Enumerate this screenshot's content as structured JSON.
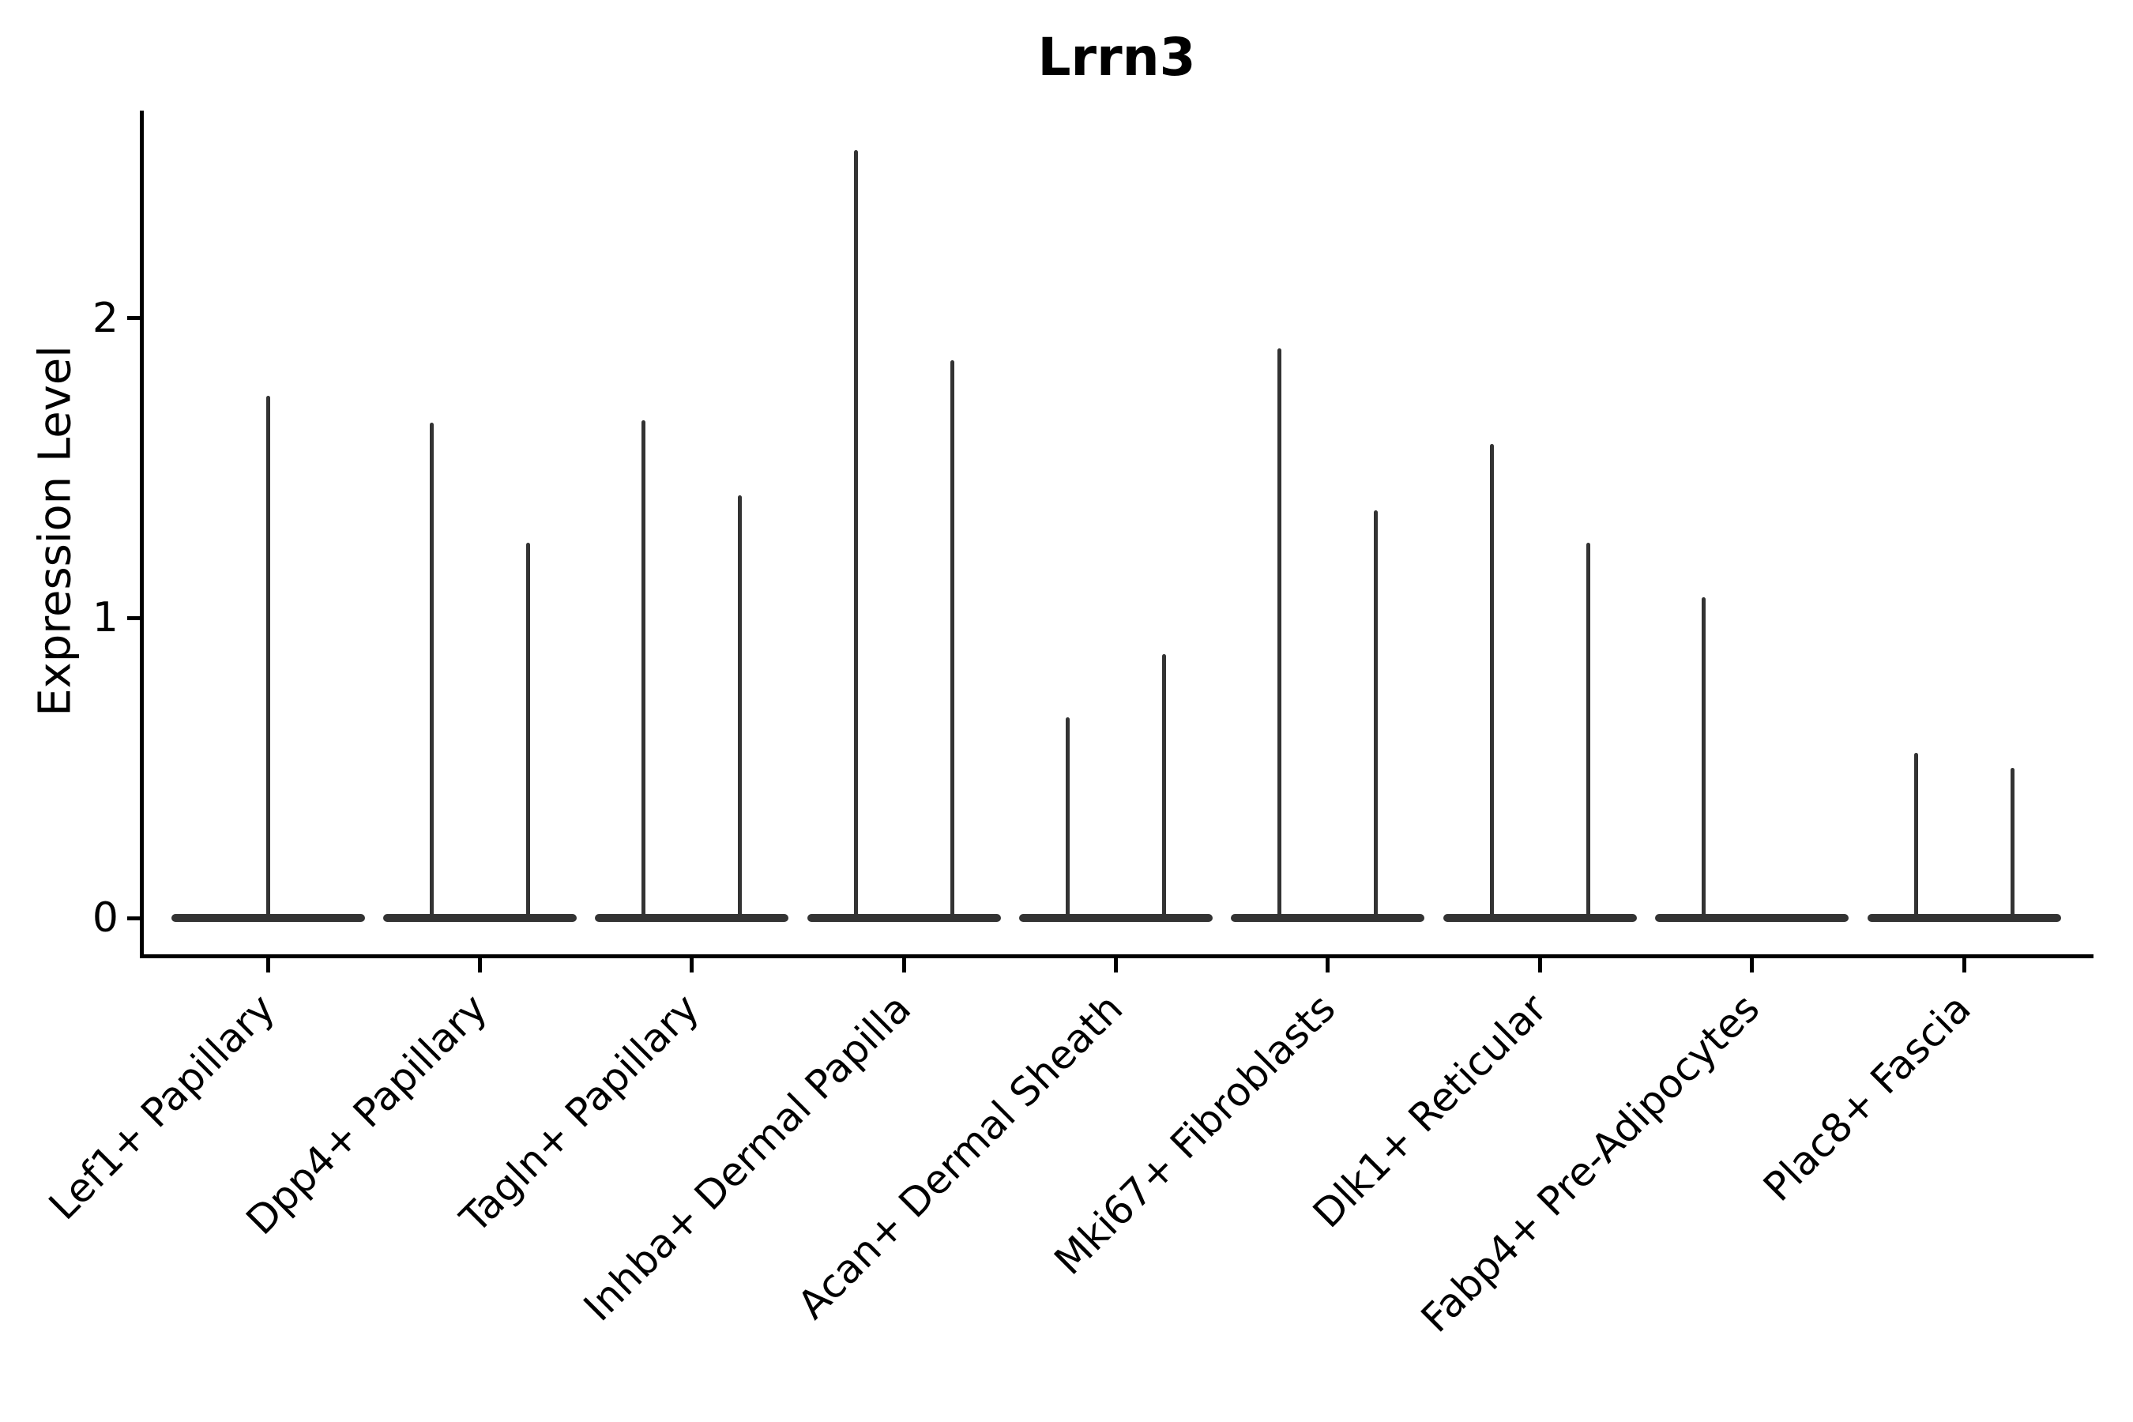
{
  "figure": {
    "title": "Lrrn3",
    "ylabel": "Expression Level",
    "colors": {
      "violin_line": "#333333",
      "axis": "#000000",
      "background": "#ffffff"
    }
  },
  "chart_data": {
    "type": "violin",
    "title": "Lrrn3",
    "xlabel": "",
    "ylabel": "Expression Level",
    "ylim": [
      -0.13,
      2.69
    ],
    "grid": false,
    "legend": "none",
    "yticks": [
      {
        "value": 0,
        "label": "0"
      },
      {
        "value": 1,
        "label": "1"
      },
      {
        "value": 2,
        "label": "2"
      }
    ],
    "description": "Mostly-zero expression violins: each violin collapses to a wide flat base at 0 with a thin vertical density spike rising to its maximum expression value.",
    "categories": [
      {
        "label": "Lef1+ Papillary",
        "violins": [
          {
            "pos": "center",
            "peak": 1.74
          }
        ]
      },
      {
        "label": "Dpp4+ Papillary",
        "violins": [
          {
            "pos": "left",
            "peak": 1.65
          },
          {
            "pos": "right",
            "peak": 1.25
          }
        ]
      },
      {
        "label": "Tagln+ Papillary",
        "violins": [
          {
            "pos": "left",
            "peak": 1.66
          },
          {
            "pos": "right",
            "peak": 1.41
          }
        ]
      },
      {
        "label": "Inhba+ Dermal Papilla",
        "violins": [
          {
            "pos": "left",
            "peak": 2.56
          },
          {
            "pos": "right",
            "peak": 1.86
          }
        ]
      },
      {
        "label": "Acan+ Dermal Sheath",
        "violins": [
          {
            "pos": "left",
            "peak": 0.67
          },
          {
            "pos": "right",
            "peak": 0.88
          }
        ]
      },
      {
        "label": "Mki67+ Fibroblasts",
        "violins": [
          {
            "pos": "left",
            "peak": 1.9
          },
          {
            "pos": "right",
            "peak": 1.36
          }
        ]
      },
      {
        "label": "Dlk1+ Reticular",
        "violins": [
          {
            "pos": "left",
            "peak": 1.58
          },
          {
            "pos": "right",
            "peak": 1.25
          }
        ]
      },
      {
        "label": "Fabp4+ Pre-Adipocytes",
        "violins": [
          {
            "pos": "left",
            "peak": 1.07
          },
          {
            "pos": "right",
            "peak": 0.0
          }
        ]
      },
      {
        "label": "Plac8+ Fascia",
        "violins": [
          {
            "pos": "left",
            "peak": 0.55
          },
          {
            "pos": "right",
            "peak": 0.5
          }
        ]
      }
    ]
  }
}
